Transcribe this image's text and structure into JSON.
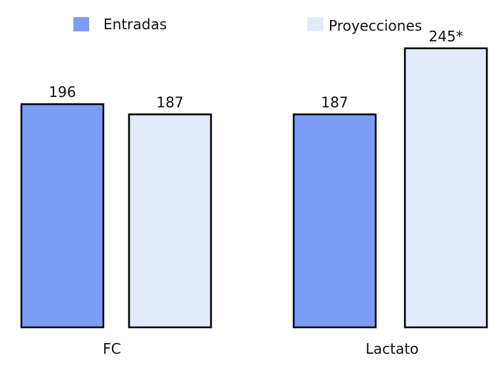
{
  "chart_data": {
    "type": "bar",
    "title": "",
    "xlabel": "",
    "ylabel": "",
    "categories": [
      "FC",
      "Lactato"
    ],
    "series": [
      {
        "name": "Entradas",
        "color": "#7b9cf7",
        "values": [
          196,
          187
        ],
        "labels": [
          "196",
          "187"
        ]
      },
      {
        "name": "Proyecciones",
        "color": "#e3eafb",
        "values": [
          187,
          245
        ],
        "labels": [
          "187",
          "245*"
        ]
      }
    ],
    "ylim": [
      0,
      270
    ],
    "grid": false,
    "legend": "top"
  }
}
